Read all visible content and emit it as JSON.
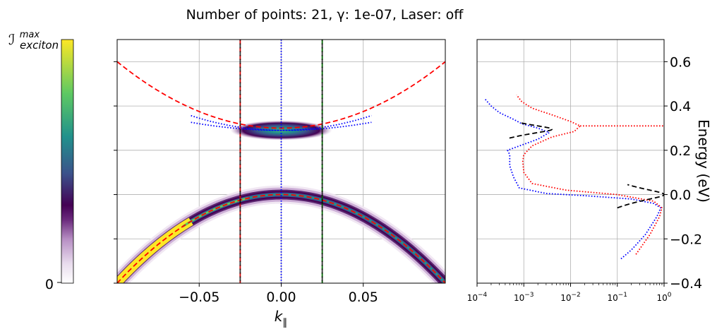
{
  "title": "Number of points: 21, γ: 1e-07, Laser: off",
  "colorbar": {
    "label_main": "ℐ",
    "label_sub": "exciton",
    "label_sup": "max",
    "min_label": "0",
    "colormap": "viridis"
  },
  "chart_data": [
    {
      "type": "heatmap",
      "xlabel": "k",
      "xlabel_sub": "∥",
      "xlim": [
        -0.1,
        0.1
      ],
      "ylim": [
        -0.4,
        0.7
      ],
      "xticks": [
        -0.05,
        0.0,
        0.05
      ],
      "xtick_labels": [
        "−0.05",
        "0.00",
        "0.05"
      ],
      "yticks": [
        -0.4,
        -0.2,
        0.0,
        0.2,
        0.4,
        0.6
      ],
      "grid": true,
      "bands": [
        {
          "name": "upper",
          "curvature": 30,
          "offset": 0.3,
          "color": "#ff0000",
          "style": "dashed"
        },
        {
          "name": "lower",
          "curvature": -40,
          "offset": 0.0,
          "color": "#ff0000",
          "style": "dashed"
        }
      ],
      "fitted_curves": [
        {
          "k_range": [
            -0.055,
            0.055
          ],
          "offset": 0.29,
          "curvatures": [
            12,
            22
          ],
          "color": "#0000ff",
          "style": "dotted"
        }
      ],
      "vertical_lines": [
        {
          "x": -0.025,
          "color": "#cc0000",
          "style": "dashed"
        },
        {
          "x": 0.0,
          "color": "#0000ff",
          "style": "dotted"
        },
        {
          "x": 0.025,
          "color": "#006400",
          "style": "dashed"
        }
      ]
    },
    {
      "type": "line",
      "ylabel": "Energy (eV)",
      "xscale": "log",
      "xlim": [
        0.0001,
        1
      ],
      "ylim": [
        -0.4,
        0.7
      ],
      "xticks": [
        0.0001,
        0.001,
        0.01,
        0.1,
        1
      ],
      "xtick_labels": [
        "10",
        "10",
        "10",
        "10",
        "10"
      ],
      "xtick_exponents": [
        "−4",
        "−3",
        "−2",
        "−1",
        "0"
      ],
      "yticks": [
        -0.4,
        -0.2,
        0.0,
        0.2,
        0.4,
        0.6
      ],
      "ytick_labels": [
        "−0.4",
        "−0.2",
        "0.0",
        "0.2",
        "0.4",
        "0.6"
      ],
      "grid": true,
      "series": [
        {
          "color": "#0000ff",
          "style": "dotted",
          "points": [
            [
              0.12,
              -0.29
            ],
            [
              0.2,
              -0.25
            ],
            [
              0.4,
              -0.18
            ],
            [
              0.7,
              -0.1
            ],
            [
              0.85,
              -0.06
            ],
            [
              0.6,
              -0.04
            ],
            [
              0.2,
              -0.02
            ],
            [
              0.02,
              -0.005
            ],
            [
              0.003,
              0.005
            ],
            [
              0.0008,
              0.03
            ],
            [
              0.0006,
              0.08
            ],
            [
              0.0005,
              0.13
            ],
            [
              0.0005,
              0.18
            ],
            [
              0.00045,
              0.2
            ],
            [
              0.0006,
              0.21
            ],
            [
              0.002,
              0.25
            ],
            [
              0.0035,
              0.28
            ],
            [
              0.002,
              0.3
            ],
            [
              0.0009,
              0.32
            ],
            [
              0.0006,
              0.34
            ],
            [
              0.0003,
              0.37
            ],
            [
              0.0002,
              0.4
            ],
            [
              0.00015,
              0.43
            ]
          ]
        },
        {
          "color": "#ff0000",
          "style": "dotted",
          "points": [
            [
              0.25,
              -0.27
            ],
            [
              0.5,
              -0.18
            ],
            [
              0.8,
              -0.1
            ],
            [
              0.9,
              -0.06
            ],
            [
              0.6,
              -0.03
            ],
            [
              0.1,
              0.0
            ],
            [
              0.008,
              0.02
            ],
            [
              0.0015,
              0.05
            ],
            [
              0.001,
              0.1
            ],
            [
              0.00095,
              0.15
            ],
            [
              0.001,
              0.18
            ],
            [
              0.0015,
              0.22
            ],
            [
              0.004,
              0.26
            ],
            [
              0.012,
              0.285
            ],
            [
              0.016,
              0.31
            ],
            [
              0.01,
              0.33
            ],
            [
              0.004,
              0.36
            ],
            [
              0.0015,
              0.39
            ],
            [
              0.0009,
              0.42
            ],
            [
              0.0007,
              0.45
            ]
          ]
        },
        {
          "color": "#ff0000",
          "style": "dotted",
          "points": [
            [
              0.016,
              0.31
            ],
            [
              1,
              0.31
            ]
          ]
        },
        {
          "color": "#000000",
          "style": "dashed",
          "peak": 1.0,
          "center": 0.0,
          "width": 0.02,
          "span": [
            -0.06,
            0.045
          ]
        },
        {
          "color": "#000000",
          "style": "dashed",
          "peak": 0.004,
          "center": 0.295,
          "width": 0.015,
          "span": [
            0.255,
            0.325
          ]
        }
      ]
    }
  ]
}
